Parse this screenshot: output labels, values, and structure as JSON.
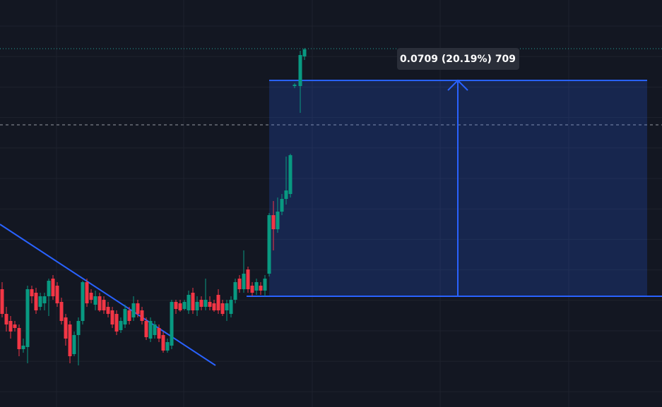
{
  "measure": {
    "label": "0.0709 (20.19%) 709"
  }
}
